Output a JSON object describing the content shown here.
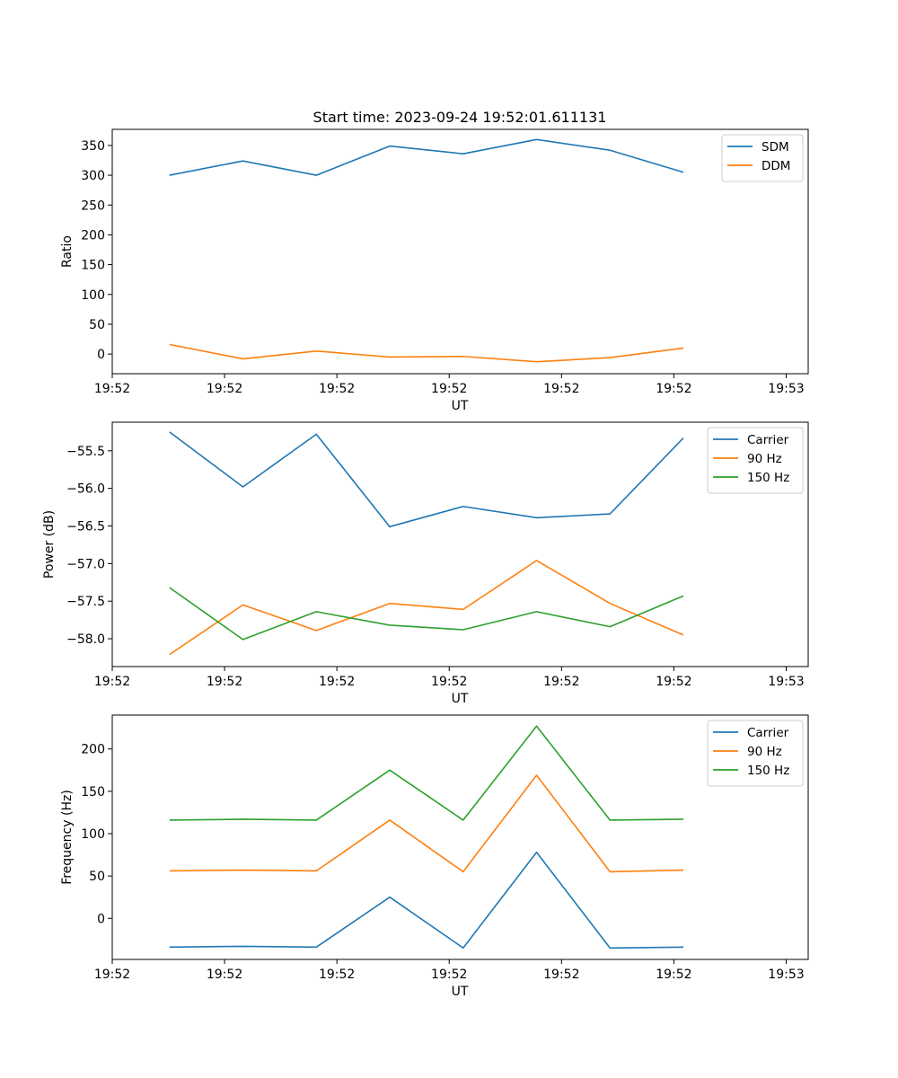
{
  "figure": {
    "title": "Start time: 2023-09-24 19:52:01.611131"
  },
  "chart_data": [
    {
      "type": "line",
      "title": "Start time: 2023-09-24 19:52:01.611131",
      "xlabel": "UT",
      "ylabel": "Ratio",
      "x": [
        1,
        2,
        3,
        4,
        5,
        6,
        7,
        8
      ],
      "xlim": [
        0.22,
        9.7
      ],
      "ylim": [
        -33,
        377
      ],
      "xticks": [
        0.22,
        1.75,
        3.28,
        4.81,
        6.34,
        7.87,
        9.4
      ],
      "xtick_labels": [
        "19:52",
        "19:52",
        "19:52",
        "19:52",
        "19:52",
        "19:52",
        "19:53"
      ],
      "yticks": [
        0,
        50,
        100,
        150,
        200,
        250,
        300,
        350
      ],
      "ytick_labels": [
        "0",
        "50",
        "100",
        "150",
        "200",
        "250",
        "300",
        "350"
      ],
      "legend": "top-right",
      "series": [
        {
          "name": "SDM",
          "color": "#1f77b4",
          "values": [
            300,
            324,
            300,
            349,
            336,
            360,
            342,
            305
          ]
        },
        {
          "name": "DDM",
          "color": "#ff7f0e",
          "values": [
            16,
            -8,
            5,
            -5,
            -4,
            -13,
            -6,
            10
          ]
        }
      ]
    },
    {
      "type": "line",
      "xlabel": "UT",
      "ylabel": "Power (dB)",
      "x": [
        1,
        2,
        3,
        4,
        5,
        6,
        7,
        8
      ],
      "xlim": [
        0.22,
        9.7
      ],
      "ylim": [
        -58.37,
        -55.12
      ],
      "xticks": [
        0.22,
        1.75,
        3.28,
        4.81,
        6.34,
        7.87,
        9.4
      ],
      "xtick_labels": [
        "19:52",
        "19:52",
        "19:52",
        "19:52",
        "19:52",
        "19:52",
        "19:53"
      ],
      "yticks": [
        -55.5,
        -56.0,
        -56.5,
        -57.0,
        -57.5,
        -58.0
      ],
      "ytick_labels": [
        "−55.5",
        "−56.0",
        "−56.5",
        "−57.0",
        "−57.5",
        "−58.0"
      ],
      "legend": "top-right",
      "series": [
        {
          "name": "Carrier",
          "color": "#1f77b4",
          "values": [
            -55.25,
            -55.98,
            -55.28,
            -56.51,
            -56.24,
            -56.39,
            -56.34,
            -55.33
          ]
        },
        {
          "name": "90 Hz",
          "color": "#ff7f0e",
          "values": [
            -58.21,
            -57.55,
            -57.89,
            -57.53,
            -57.61,
            -56.96,
            -57.53,
            -57.95
          ]
        },
        {
          "name": "150 Hz",
          "color": "#2ca02c",
          "values": [
            -57.32,
            -58.01,
            -57.64,
            -57.82,
            -57.88,
            -57.64,
            -57.84,
            -57.43
          ]
        }
      ]
    },
    {
      "type": "line",
      "xlabel": "UT",
      "ylabel": "Frequency (Hz)",
      "x": [
        1,
        2,
        3,
        4,
        5,
        6,
        7,
        8
      ],
      "xlim": [
        0.22,
        9.7
      ],
      "ylim": [
        -48.5,
        240
      ],
      "xticks": [
        0.22,
        1.75,
        3.28,
        4.81,
        6.34,
        7.87,
        9.4
      ],
      "xtick_labels": [
        "19:52",
        "19:52",
        "19:52",
        "19:52",
        "19:52",
        "19:52",
        "19:53"
      ],
      "yticks": [
        0,
        50,
        100,
        150,
        200
      ],
      "ytick_labels": [
        "0",
        "50",
        "100",
        "150",
        "200"
      ],
      "legend": "top-right",
      "series": [
        {
          "name": "Carrier",
          "color": "#1f77b4",
          "values": [
            -34,
            -33,
            -34,
            25,
            -35,
            78,
            -35,
            -34
          ]
        },
        {
          "name": "90 Hz",
          "color": "#ff7f0e",
          "values": [
            56,
            57,
            56,
            116,
            55,
            169,
            55,
            57
          ]
        },
        {
          "name": "150 Hz",
          "color": "#2ca02c",
          "values": [
            116,
            117,
            116,
            175,
            116,
            227,
            116,
            117
          ]
        }
      ]
    }
  ]
}
